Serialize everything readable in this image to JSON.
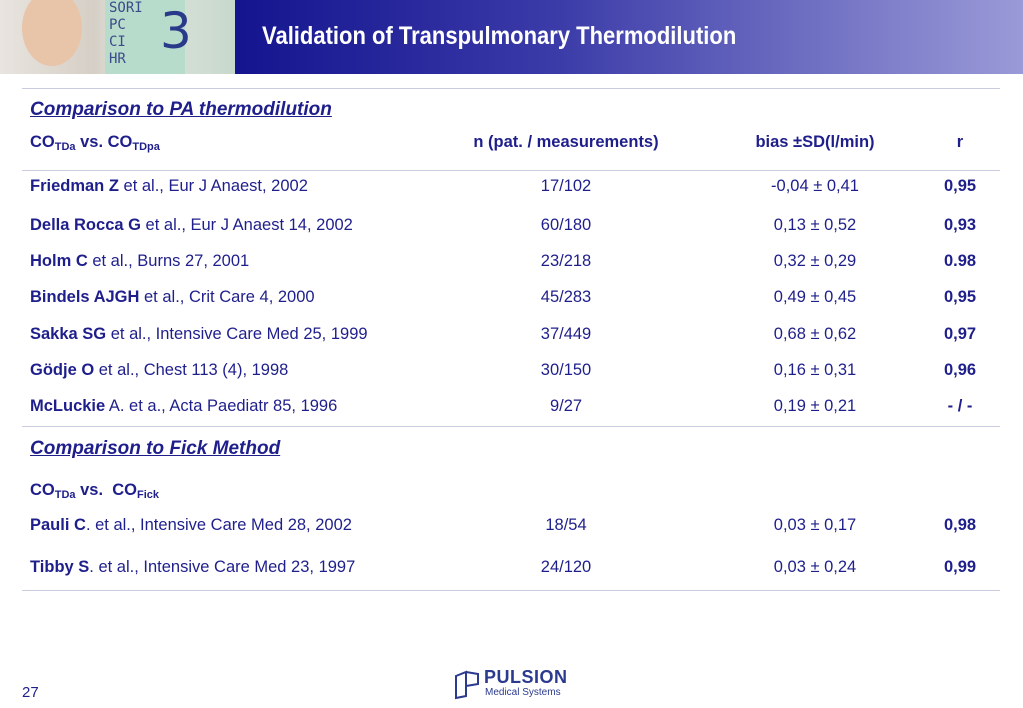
{
  "header": {
    "title": "Validation of Transpulmonary Thermodilution",
    "monitor": {
      "labels": [
        "SORI",
        "PC",
        "CI",
        "HR"
      ],
      "digit": "3"
    }
  },
  "sections": [
    {
      "heading": "Comparison to PA thermodilution",
      "columns": {
        "co": "CO",
        "sub_a": "TDa",
        "vs": " vs. CO",
        "sub_b": "TDpa",
        "n": "n (pat. / measurements)",
        "bias": "bias ±SD(l/min)",
        "r": "r"
      },
      "rows": [
        {
          "author": "Friedman Z",
          "citation": " et al., Eur J Anaest, 2002",
          "n": "17/102",
          "bias": "-0,04 ± 0,41",
          "r": "0,95"
        },
        {
          "author": "Della Rocca G",
          "citation": " et al., Eur J Anaest 14, 2002",
          "n": "60/180",
          "bias": "0,13 ± 0,52",
          "r": "0,93"
        },
        {
          "author": "Holm C",
          "citation": " et al., Burns 27, 2001",
          "n": "23/218",
          "bias": "0,32 ± 0,29",
          "r": "0.98"
        },
        {
          "author": "Bindels AJGH",
          "citation": " et al., Crit Care 4, 2000",
          "n": "45/283",
          "bias": "0,49 ± 0,45",
          "r": "0,95"
        },
        {
          "author": "Sakka SG",
          "citation": " et al., Intensive Care Med 25, 1999",
          "n": "37/449",
          "bias": "0,68 ± 0,62",
          "r": "0,97"
        },
        {
          "author": "Gödje O",
          "citation": " et al., Chest 113 (4), 1998",
          "n": "30/150",
          "bias": "0,16 ± 0,31",
          "r": "0,96"
        },
        {
          "author": "McLuckie",
          "citation": " A. et a., Acta Paediatr 85, 1996",
          "n": "9/27",
          "bias": "0,19 ± 0,21",
          "r": "- / -"
        }
      ]
    },
    {
      "heading": "Comparison to Fick Method",
      "columns": {
        "co": "CO",
        "sub_a": "TDa",
        "vs": " vs.  CO",
        "sub_b": "Fick"
      },
      "rows": [
        {
          "author": "Pauli C",
          "citation": ". et al., Intensive Care Med 28, 2002",
          "n": "18/54",
          "bias": "0,03 ± 0,17",
          "r": "0,98"
        },
        {
          "author": "Tibby S",
          "citation": ". et al., Intensive Care Med 23, 1997",
          "n": "24/120",
          "bias": "0,03 ± 0,24",
          "r": "0,99"
        }
      ]
    }
  ],
  "footer": {
    "page": "27",
    "logo": {
      "name": "PULSION",
      "tagline": "Medical Systems"
    }
  }
}
